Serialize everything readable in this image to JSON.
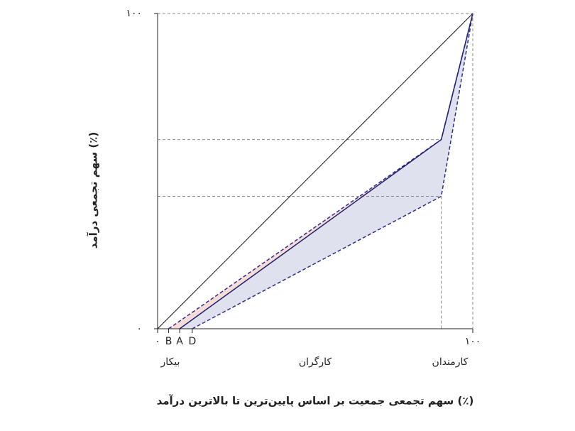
{
  "chart_data": {
    "type": "line",
    "x_label": "سهم تجمعی جمعیت بر اساس پایین‌ترین تا بالاترین درآمد (٪)",
    "y_label": "سهم تجمعی درآمد (٪)",
    "group_labels": [
      "بیکار",
      "کارگران",
      "کارمندان"
    ],
    "xlim": [
      0,
      100
    ],
    "ylim": [
      0,
      100
    ],
    "xticks": [
      {
        "value": 0,
        "label": "۰"
      },
      {
        "value": 3.5,
        "label": "B"
      },
      {
        "value": 7,
        "label": "A"
      },
      {
        "value": 11,
        "label": "D"
      },
      {
        "value": 100,
        "label": "۱۰۰"
      }
    ],
    "yticks": [
      {
        "value": 0,
        "label": "۰"
      },
      {
        "value": 100,
        "label": "۱۰۰"
      }
    ],
    "series": [
      {
        "color": "#1a1a1a",
        "style": "solid",
        "x": [
          0,
          100
        ],
        "values": [
          0,
          100
        ]
      },
      {
        "color": "#2e2e8a",
        "style": "dashed",
        "x": [
          3.5,
          90,
          100
        ],
        "values": [
          0,
          60,
          100
        ]
      },
      {
        "color": "#1f1f6e",
        "style": "solid",
        "x": [
          7,
          90,
          100
        ],
        "values": [
          0,
          60,
          100
        ]
      },
      {
        "color": "#2e2e8a",
        "style": "dashed",
        "x": [
          11,
          90,
          100
        ],
        "values": [
          0,
          42,
          100
        ]
      }
    ],
    "fills": [
      {
        "between": [
          1,
          2
        ],
        "color": "#f6dcd6"
      },
      {
        "between": [
          2,
          3
        ],
        "color": "#dfe1ef"
      }
    ]
  }
}
